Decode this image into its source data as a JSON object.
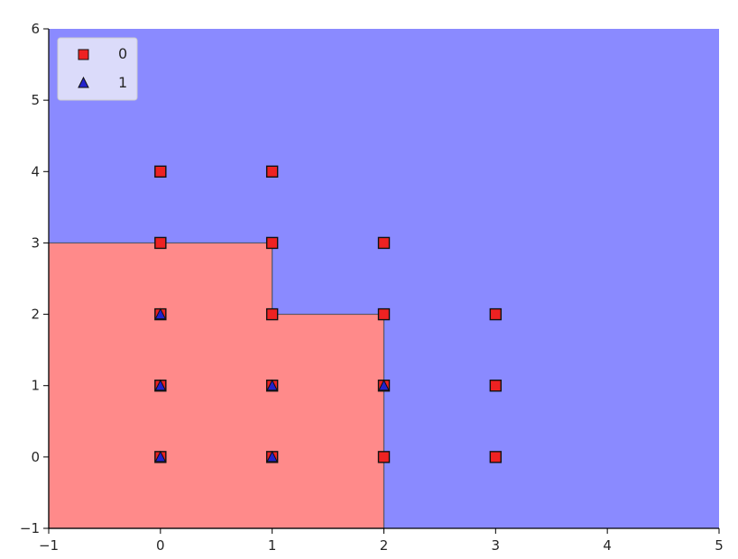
{
  "chart_data": {
    "type": "scatter",
    "title": "",
    "xlabel": "",
    "ylabel": "",
    "xlim": [
      -1,
      5
    ],
    "ylim": [
      -1,
      6
    ],
    "xticks": [
      "−1",
      "0",
      "1",
      "2",
      "3",
      "4",
      "5"
    ],
    "yticks": [
      "−1",
      "0",
      "1",
      "2",
      "3",
      "4",
      "5",
      "6"
    ],
    "grid": false,
    "legend_position": "top-left",
    "legend": [
      {
        "label": "0",
        "marker": "square",
        "color": "#ee2222"
      },
      {
        "label": "1",
        "marker": "triangle",
        "color": "#2222cc"
      }
    ],
    "regions": {
      "class_0_color": "#ff8a8a",
      "class_1_color": "#8a8aff",
      "class_0_area": [
        [
          -1,
          -1
        ],
        [
          2,
          -1
        ],
        [
          2,
          2
        ],
        [
          1,
          2
        ],
        [
          1,
          3
        ],
        [
          -1,
          3
        ]
      ]
    },
    "series": [
      {
        "name": "0",
        "marker": "square",
        "points": [
          [
            0,
            0
          ],
          [
            0,
            1
          ],
          [
            0,
            2
          ],
          [
            0,
            3
          ],
          [
            0,
            4
          ],
          [
            1,
            0
          ],
          [
            1,
            1
          ],
          [
            1,
            2
          ],
          [
            1,
            3
          ],
          [
            1,
            4
          ],
          [
            2,
            0
          ],
          [
            2,
            1
          ],
          [
            2,
            2
          ],
          [
            2,
            3
          ],
          [
            3,
            0
          ],
          [
            3,
            1
          ],
          [
            3,
            2
          ]
        ]
      },
      {
        "name": "1",
        "marker": "triangle",
        "points": [
          [
            0,
            0
          ],
          [
            0,
            1
          ],
          [
            0,
            2
          ],
          [
            1,
            0
          ],
          [
            1,
            1
          ],
          [
            2,
            1
          ]
        ]
      }
    ]
  }
}
